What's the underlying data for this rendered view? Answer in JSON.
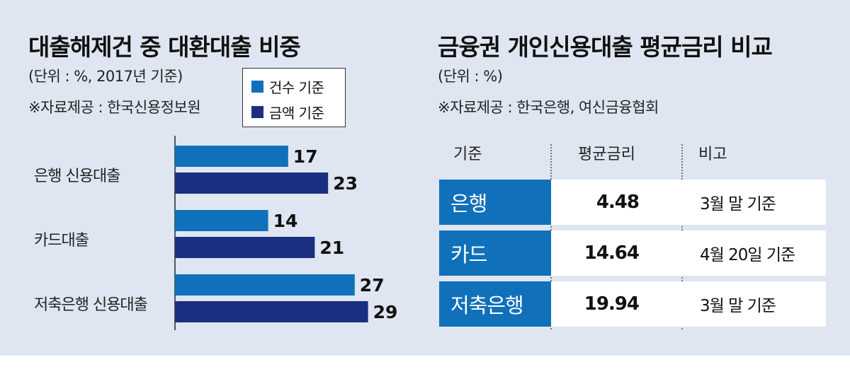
{
  "left": {
    "title": "대출해제건 중 대환대출 비중",
    "unit": "(단위 : %, 2017년 기준)",
    "source": "※자료제공 : 한국신용정보원"
  },
  "right": {
    "title": "금융권 개인신용대출 평균금리 비교",
    "unit": "(단위 : %)",
    "source": "※자료제공 : 한국은행, 여신금융협회"
  },
  "chart_data": [
    {
      "type": "bar",
      "orientation": "horizontal",
      "title": "대출해제건 중 대환대출 비중",
      "categories": [
        "은행 신용대출",
        "카드대출",
        "저축은행 신용대출"
      ],
      "series": [
        {
          "name": "건수 기준",
          "values": [
            17,
            14,
            27
          ],
          "color": "#1070ba"
        },
        {
          "name": "금액 기준",
          "values": [
            23,
            21,
            29
          ],
          "color": "#1a2f80"
        }
      ],
      "xlim": [
        0,
        30
      ],
      "grid": false,
      "legend_position": "top-right"
    },
    {
      "type": "table",
      "title": "금융권 개인신용대출 평균금리 비교",
      "columns": [
        "기준",
        "평균금리",
        "비고"
      ],
      "rows": [
        {
          "name": "은행",
          "rate": "4.48",
          "note": "3월 말 기준"
        },
        {
          "name": "카드",
          "rate": "14.64",
          "note": "4월 20일 기준"
        },
        {
          "name": "저축은행",
          "rate": "19.94",
          "note": "3월 말 기준"
        }
      ]
    }
  ]
}
